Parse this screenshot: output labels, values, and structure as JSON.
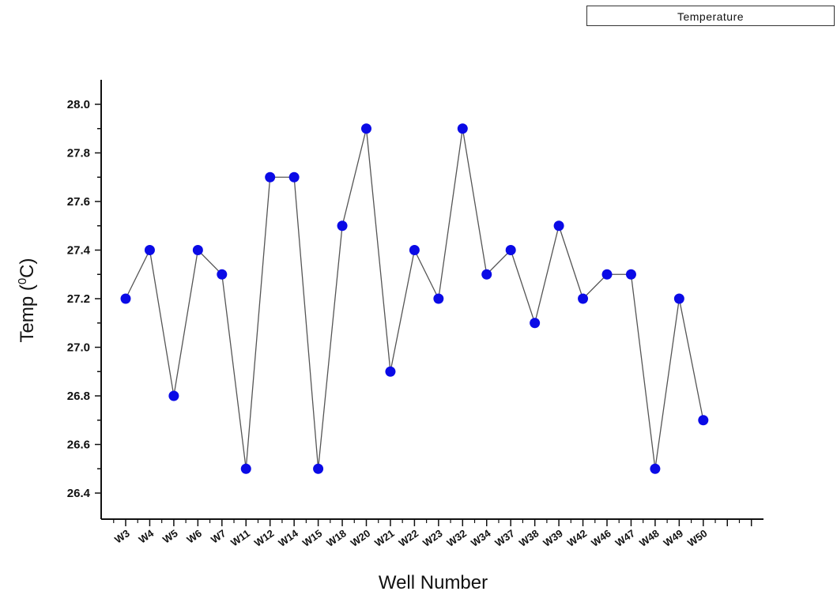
{
  "legend": {
    "label": "Temperature"
  },
  "chart_data": {
    "type": "line",
    "title": "",
    "xlabel": "Well Number",
    "ylabel": "Temp (0C)",
    "ylabel_parts": {
      "pre": "Temp (",
      "sup": "0",
      "post": "C)"
    },
    "ylim": [
      26.3,
      28.1
    ],
    "yticks": [
      "26.4",
      "26.6",
      "26.8",
      "27.0",
      "27.2",
      "27.4",
      "27.6",
      "27.8",
      "28.0"
    ],
    "grid": false,
    "legend_position": "top-right",
    "marker_color": "#0a0ae6",
    "line_color": "#555555",
    "categories": [
      "W3",
      "W4",
      "W5",
      "W6",
      "W7",
      "W11",
      "W12",
      "W14",
      "W15",
      "W18",
      "W20",
      "W21",
      "W22",
      "W23",
      "W32",
      "W34",
      "W37",
      "W38",
      "W39",
      "W42",
      "W46",
      "W47",
      "W48",
      "W49",
      "W50"
    ],
    "series": [
      {
        "name": "Temperature",
        "values": [
          27.2,
          27.4,
          26.8,
          27.4,
          27.3,
          26.5,
          27.7,
          27.7,
          26.5,
          27.5,
          27.9,
          26.9,
          27.4,
          27.2,
          27.9,
          27.3,
          27.4,
          27.1,
          27.5,
          27.2,
          27.3,
          27.3,
          26.5,
          27.2,
          26.7
        ]
      }
    ]
  }
}
